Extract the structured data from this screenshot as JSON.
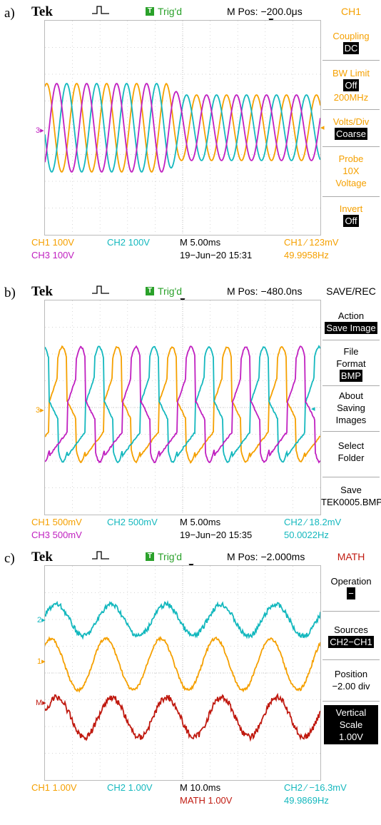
{
  "panels": [
    {
      "label": "a)",
      "brand": "Tek",
      "trigger": "Trig'd",
      "mpos": "M Pos: −200.0μs",
      "side_title": "CH1",
      "side": [
        {
          "label": "Coupling",
          "value": "DC"
        },
        {
          "label": "BW Limit",
          "value": "Off",
          "extra": "200MHz"
        },
        {
          "label": "Volts/Div",
          "value": "Coarse"
        },
        {
          "label": "Probe",
          "lines": [
            "10X",
            "Voltage"
          ]
        },
        {
          "label": "Invert",
          "value": "Off"
        }
      ],
      "ch1": "CH1  100V",
      "ch2": "CH2  100V",
      "ch3": "CH3  100V",
      "time": "M 5.00ms",
      "date": "19−Jun−20 15:31",
      "trig_info": "CH1 ∕ 123mV",
      "freq": "49.9958Hz",
      "marker": "3"
    },
    {
      "label": "b)",
      "brand": "Tek",
      "trigger": "Trig'd",
      "mpos": "M Pos: −480.0ns",
      "side_title": "SAVE/REC",
      "side": [
        {
          "label": "Action",
          "value": "Save Image"
        },
        {
          "lines": [
            "File",
            "Format"
          ],
          "value": "BMP"
        },
        {
          "lines": [
            "About",
            "Saving",
            "Images"
          ]
        },
        {
          "lines": [
            "Select",
            "Folder"
          ]
        },
        {
          "lines": [
            "Save",
            "TEK0005.BMP"
          ]
        }
      ],
      "ch1": "CH1  500mV",
      "ch2": "CH2  500mV",
      "ch3": "CH3  500mV",
      "time": "M 5.00ms",
      "date": "19−Jun−20 15:35",
      "trig_info": "CH2 ∕ 18.2mV",
      "freq": "50.0022Hz",
      "marker": "3"
    },
    {
      "label": "c)",
      "brand": "Tek",
      "trigger": "Trig'd",
      "mpos": "M Pos: −2.000ms",
      "side_title": "MATH",
      "side": [
        {
          "label": "Operation",
          "value": "−"
        },
        {
          "label": "Sources",
          "value": "CH2−CH1"
        },
        {
          "lines": [
            "Position",
            "−2.00 div"
          ]
        },
        {
          "lines": [
            "Vertical",
            "Scale",
            "1.00V"
          ]
        }
      ],
      "ch1": "CH1  1.00V",
      "ch2": "CH2  1.00V",
      "math": "MATH 1.00V",
      "time": "M 10.0ms",
      "trig_info": "CH2 ∕ −16.3mV",
      "freq": "49.9869Hz",
      "markers": [
        "2",
        "1",
        "M"
      ]
    }
  ],
  "colors": {
    "ch1": "#f5a000",
    "ch2": "#14b8be",
    "ch3": "#c020c0",
    "math": "#c01a10"
  }
}
